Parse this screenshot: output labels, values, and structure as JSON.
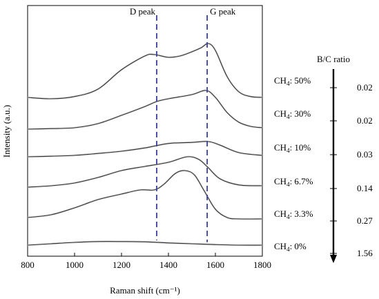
{
  "chart_data": {
    "type": "line",
    "title": "",
    "xlabel": "Raman shift (cm⁻¹)",
    "ylabel": "Intensity (a.u.)",
    "xlim": [
      800,
      1800
    ],
    "xticks": [
      "800",
      "1000",
      "1200",
      "1400",
      "1600",
      "1800"
    ],
    "grid": false,
    "reference_lines": [
      {
        "label": "D peak",
        "x": 1350
      },
      {
        "label": "G peak",
        "x": 1565
      }
    ],
    "series": [
      {
        "name": "CH4: 50%",
        "label_main": "CH",
        "label_sub": "4",
        "label_tail": ": 50%",
        "baseline": 5.3,
        "points": [
          [
            800,
            0.05
          ],
          [
            900,
            0.0
          ],
          [
            1000,
            0.08
          ],
          [
            1100,
            0.35
          ],
          [
            1200,
            1.05
          ],
          [
            1300,
            1.55
          ],
          [
            1340,
            1.6
          ],
          [
            1400,
            1.5
          ],
          [
            1450,
            1.55
          ],
          [
            1500,
            1.7
          ],
          [
            1540,
            1.85
          ],
          [
            1570,
            2.0
          ],
          [
            1600,
            1.75
          ],
          [
            1650,
            0.8
          ],
          [
            1700,
            0.25
          ],
          [
            1750,
            0.08
          ],
          [
            1800,
            0.05
          ]
        ]
      },
      {
        "name": "CH4: 30%",
        "label_main": "CH",
        "label_sub": "4",
        "label_tail": ": 30%",
        "baseline": 4.2,
        "points": [
          [
            800,
            0.0
          ],
          [
            900,
            0.02
          ],
          [
            1000,
            0.05
          ],
          [
            1100,
            0.2
          ],
          [
            1200,
            0.5
          ],
          [
            1300,
            0.82
          ],
          [
            1350,
            1.0
          ],
          [
            1400,
            1.1
          ],
          [
            1500,
            1.25
          ],
          [
            1560,
            1.4
          ],
          [
            1600,
            1.15
          ],
          [
            1650,
            0.6
          ],
          [
            1700,
            0.25
          ],
          [
            1750,
            0.1
          ],
          [
            1800,
            0.05
          ]
        ]
      },
      {
        "name": "CH4: 10%",
        "label_main": "CH",
        "label_sub": "4",
        "label_tail": ": 10%",
        "baseline": 3.2,
        "points": [
          [
            800,
            0.0
          ],
          [
            900,
            0.02
          ],
          [
            1000,
            0.05
          ],
          [
            1100,
            0.12
          ],
          [
            1200,
            0.2
          ],
          [
            1300,
            0.32
          ],
          [
            1400,
            0.48
          ],
          [
            1500,
            0.52
          ],
          [
            1570,
            0.55
          ],
          [
            1620,
            0.42
          ],
          [
            1700,
            0.15
          ],
          [
            1800,
            0.05
          ]
        ]
      },
      {
        "name": "CH4: 6.7%",
        "label_main": "CH",
        "label_sub": "4",
        "label_tail": ": 6.7%",
        "baseline": 2.1,
        "points": [
          [
            800,
            0.0
          ],
          [
            900,
            0.05
          ],
          [
            1000,
            0.15
          ],
          [
            1100,
            0.35
          ],
          [
            1200,
            0.6
          ],
          [
            1300,
            0.75
          ],
          [
            1400,
            0.9
          ],
          [
            1480,
            1.1
          ],
          [
            1530,
            1.0
          ],
          [
            1570,
            0.7
          ],
          [
            1620,
            0.3
          ],
          [
            1700,
            0.08
          ],
          [
            1800,
            0.05
          ]
        ]
      },
      {
        "name": "CH4: 3.3%",
        "label_main": "CH",
        "label_sub": "4",
        "label_tail": ": 3.3%",
        "baseline": 0.95,
        "points": [
          [
            800,
            0.05
          ],
          [
            900,
            0.15
          ],
          [
            1000,
            0.4
          ],
          [
            1100,
            0.7
          ],
          [
            1200,
            0.9
          ],
          [
            1280,
            1.05
          ],
          [
            1340,
            1.05
          ],
          [
            1380,
            1.25
          ],
          [
            1430,
            1.65
          ],
          [
            1470,
            1.75
          ],
          [
            1510,
            1.6
          ],
          [
            1550,
            1.05
          ],
          [
            1600,
            0.35
          ],
          [
            1650,
            0.05
          ],
          [
            1700,
            0.0
          ],
          [
            1800,
            0.0
          ]
        ]
      },
      {
        "name": "CH4: 0%",
        "label_main": "CH",
        "label_sub": "4",
        "label_tail": ": 0%",
        "baseline": 0.0,
        "points": [
          [
            800,
            0.0
          ],
          [
            900,
            0.05
          ],
          [
            1000,
            0.1
          ],
          [
            1100,
            0.13
          ],
          [
            1200,
            0.13
          ],
          [
            1300,
            0.12
          ],
          [
            1400,
            0.08
          ],
          [
            1500,
            0.05
          ],
          [
            1600,
            0.02
          ],
          [
            1700,
            0.0
          ],
          [
            1800,
            0.0
          ]
        ]
      }
    ],
    "ratio_axis": {
      "title": "B/C ratio",
      "values": [
        "0.02",
        "0.02",
        "0.03",
        "0.14",
        "0.27",
        "1.56"
      ]
    }
  }
}
